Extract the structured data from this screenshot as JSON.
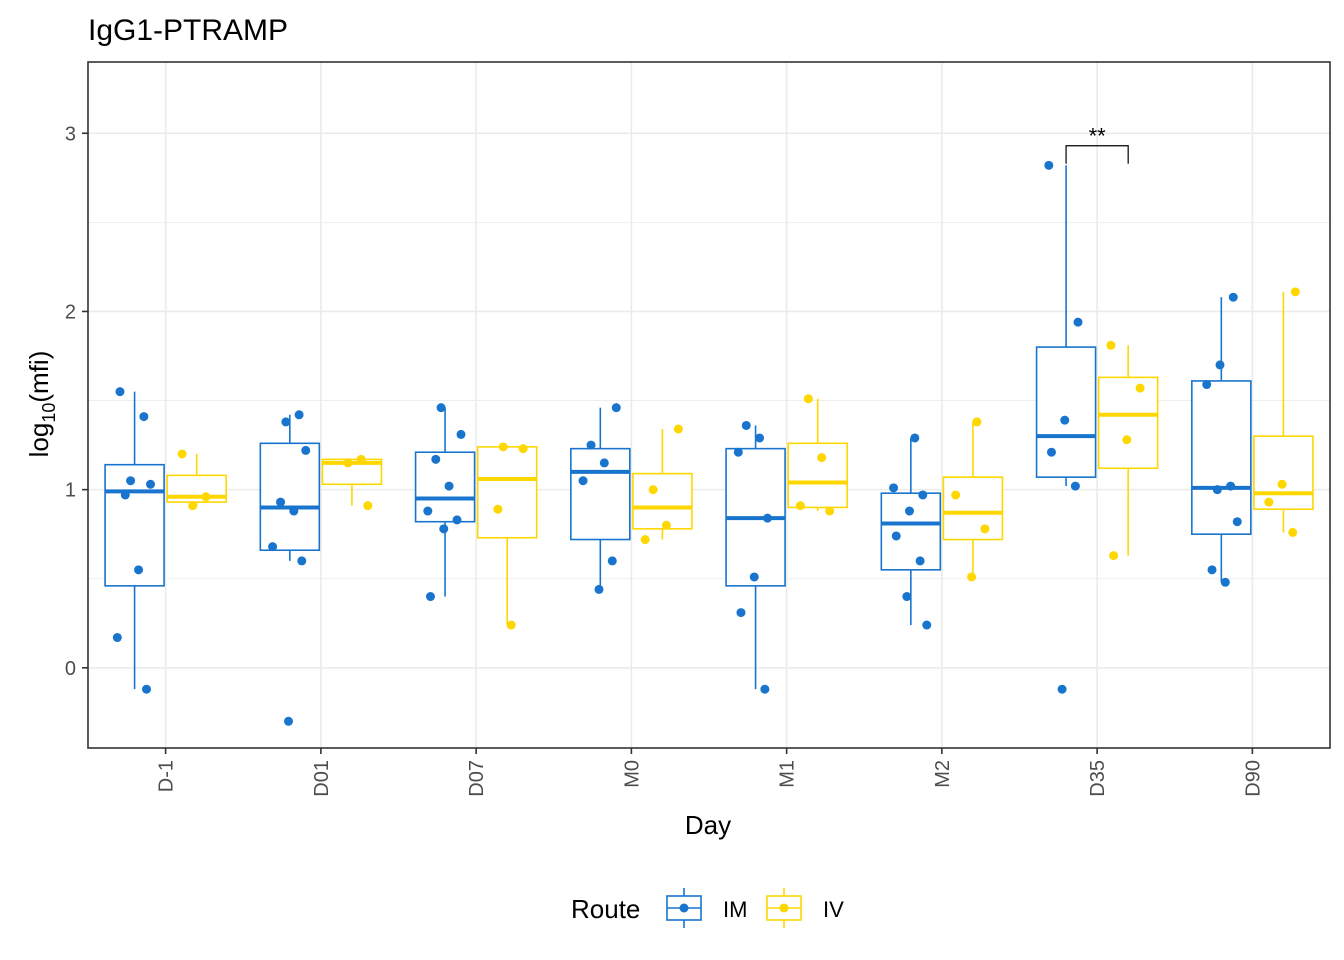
{
  "chart_data": {
    "type": "boxplot",
    "title": "IgG1-PTRAMP",
    "xlabel": "Day",
    "ylabel_base": "log",
    "ylabel_sub": "10",
    "ylabel_arg": "(mfi)",
    "ylim": [
      -0.45,
      3.4
    ],
    "yticks": [
      0,
      1,
      2,
      3
    ],
    "categories": [
      "D-1",
      "D01",
      "D07",
      "M0",
      "M1",
      "M2",
      "D35",
      "D90"
    ],
    "legend": {
      "title": "Route",
      "position": "bottom",
      "entries": [
        "IM",
        "IV"
      ]
    },
    "colors": {
      "IM": "#1874CD",
      "IV": "#FFD700",
      "grid": "#EBEBEB",
      "axis": "#333333"
    },
    "grid": true,
    "series": [
      {
        "name": "IM",
        "boxes": [
          {
            "day": "D-1",
            "q1": 0.46,
            "median": 0.99,
            "q3": 1.14,
            "whisker_low": -0.12,
            "whisker_high": 1.55
          },
          {
            "day": "D01",
            "q1": 0.66,
            "median": 0.9,
            "q3": 1.26,
            "whisker_low": 0.6,
            "whisker_high": 1.42
          },
          {
            "day": "D07",
            "q1": 0.82,
            "median": 0.95,
            "q3": 1.21,
            "whisker_low": 0.4,
            "whisker_high": 1.46
          },
          {
            "day": "M0",
            "q1": 0.72,
            "median": 1.1,
            "q3": 1.23,
            "whisker_low": 0.44,
            "whisker_high": 1.46
          },
          {
            "day": "M1",
            "q1": 0.46,
            "median": 0.84,
            "q3": 1.23,
            "whisker_low": -0.12,
            "whisker_high": 1.36
          },
          {
            "day": "M2",
            "q1": 0.55,
            "median": 0.81,
            "q3": 0.98,
            "whisker_low": 0.24,
            "whisker_high": 1.29
          },
          {
            "day": "D35",
            "q1": 1.07,
            "median": 1.3,
            "q3": 1.8,
            "whisker_low": 1.02,
            "whisker_high": 2.82
          },
          {
            "day": "D90",
            "q1": 0.75,
            "median": 1.01,
            "q3": 1.61,
            "whisker_low": 0.48,
            "whisker_high": 2.08
          }
        ],
        "points": [
          {
            "day": "D-1",
            "values": [
              1.55,
              1.41,
              1.05,
              1.03,
              0.97,
              0.55,
              0.17,
              -0.12
            ]
          },
          {
            "day": "D01",
            "values": [
              1.42,
              1.38,
              1.22,
              0.93,
              0.88,
              0.68,
              0.6,
              -0.3
            ]
          },
          {
            "day": "D07",
            "values": [
              1.46,
              1.31,
              1.17,
              1.02,
              0.88,
              0.83,
              0.78,
              0.4
            ]
          },
          {
            "day": "M0",
            "values": [
              1.46,
              1.25,
              1.15,
              1.05,
              0.6,
              0.44
            ]
          },
          {
            "day": "M1",
            "values": [
              1.36,
              1.29,
              1.21,
              0.84,
              0.51,
              0.31,
              -0.12
            ]
          },
          {
            "day": "M2",
            "values": [
              1.29,
              1.01,
              0.97,
              0.88,
              0.74,
              0.6,
              0.4,
              0.24
            ]
          },
          {
            "day": "D35",
            "values": [
              2.82,
              1.94,
              1.39,
              1.21,
              1.02,
              -0.12
            ]
          },
          {
            "day": "D90",
            "values": [
              2.08,
              1.7,
              1.59,
              1.02,
              1.0,
              0.82,
              0.55,
              0.48
            ]
          }
        ]
      },
      {
        "name": "IV",
        "boxes": [
          {
            "day": "D-1",
            "q1": 0.93,
            "median": 0.96,
            "q3": 1.08,
            "whisker_low": 0.91,
            "whisker_high": 1.2
          },
          {
            "day": "D01",
            "q1": 1.03,
            "median": 1.15,
            "q3": 1.17,
            "whisker_low": 0.91,
            "whisker_high": 1.17
          },
          {
            "day": "D07",
            "q1": 0.73,
            "median": 1.06,
            "q3": 1.24,
            "whisker_low": 0.24,
            "whisker_high": 1.24
          },
          {
            "day": "M0",
            "q1": 0.78,
            "median": 0.9,
            "q3": 1.09,
            "whisker_low": 0.72,
            "whisker_high": 1.34
          },
          {
            "day": "M1",
            "q1": 0.9,
            "median": 1.04,
            "q3": 1.26,
            "whisker_low": 0.88,
            "whisker_high": 1.51
          },
          {
            "day": "M2",
            "q1": 0.72,
            "median": 0.87,
            "q3": 1.07,
            "whisker_low": 0.51,
            "whisker_high": 1.38
          },
          {
            "day": "D35",
            "q1": 1.12,
            "median": 1.42,
            "q3": 1.63,
            "whisker_low": 0.63,
            "whisker_high": 1.81
          },
          {
            "day": "D90",
            "q1": 0.89,
            "median": 0.98,
            "q3": 1.3,
            "whisker_low": 0.76,
            "whisker_high": 2.11
          }
        ],
        "points": [
          {
            "day": "D-1",
            "values": [
              1.2,
              0.96,
              0.91
            ]
          },
          {
            "day": "D01",
            "values": [
              1.17,
              1.15,
              0.91
            ]
          },
          {
            "day": "D07",
            "values": [
              1.24,
              1.23,
              0.89,
              0.24
            ]
          },
          {
            "day": "M0",
            "values": [
              1.34,
              1.0,
              0.8,
              0.72
            ]
          },
          {
            "day": "M1",
            "values": [
              1.51,
              1.18,
              0.91,
              0.88
            ]
          },
          {
            "day": "M2",
            "values": [
              1.38,
              0.97,
              0.78,
              0.51
            ]
          },
          {
            "day": "D35",
            "values": [
              1.81,
              1.57,
              1.28,
              0.63
            ]
          },
          {
            "day": "D90",
            "values": [
              2.11,
              1.03,
              0.93,
              0.76
            ]
          }
        ]
      }
    ],
    "annotations": [
      {
        "day": "D35",
        "text": "**",
        "y": 2.93
      }
    ]
  }
}
